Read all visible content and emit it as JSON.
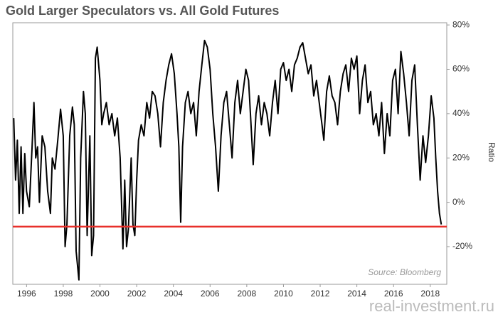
{
  "chart_data": {
    "type": "line",
    "title": "Gold Larger Speculators vs. All Gold Futures",
    "y_label": "Ratio",
    "source": "Source: Bloomberg",
    "watermark": "real-investment.ru",
    "color": "#000000",
    "hline": -11,
    "hline_color": "#e8302b",
    "xlim": [
      1995.25,
      2018.9
    ],
    "xticks": [
      1996,
      1998,
      2000,
      2002,
      2004,
      2006,
      2008,
      2010,
      2012,
      2014,
      2016,
      2018
    ],
    "ylim": [
      -37,
      81
    ],
    "yticks": [
      {
        "value": -20,
        "label": "-20%"
      },
      {
        "value": 0,
        "label": "0%"
      },
      {
        "value": 20,
        "label": "20%"
      },
      {
        "value": 40,
        "label": "40%"
      },
      {
        "value": 60,
        "label": "60%"
      },
      {
        "value": 80,
        "label": "80%"
      }
    ],
    "x": [
      1995.3,
      1995.4,
      1995.5,
      1995.6,
      1995.7,
      1995.8,
      1995.9,
      1996.0,
      1996.15,
      1996.3,
      1996.4,
      1996.5,
      1996.6,
      1996.7,
      1996.85,
      1997.0,
      1997.15,
      1997.3,
      1997.4,
      1997.55,
      1997.7,
      1997.85,
      1998.0,
      1998.1,
      1998.2,
      1998.35,
      1998.5,
      1998.6,
      1998.7,
      1998.85,
      1998.95,
      1999.1,
      1999.2,
      1999.3,
      1999.45,
      1999.55,
      1999.65,
      1999.75,
      1999.85,
      2000.0,
      2000.1,
      2000.2,
      2000.35,
      2000.5,
      2000.65,
      2000.8,
      2000.95,
      2001.1,
      2001.25,
      2001.35,
      2001.45,
      2001.55,
      2001.7,
      2001.8,
      2001.9,
      2002.0,
      2002.1,
      2002.25,
      2002.4,
      2002.55,
      2002.7,
      2002.85,
      2003.0,
      2003.15,
      2003.3,
      2003.45,
      2003.6,
      2003.75,
      2003.9,
      2004.05,
      2004.2,
      2004.3,
      2004.4,
      2004.5,
      2004.65,
      2004.8,
      2004.95,
      2005.1,
      2005.25,
      2005.4,
      2005.55,
      2005.7,
      2005.85,
      2006.0,
      2006.15,
      2006.3,
      2006.45,
      2006.6,
      2006.75,
      2006.9,
      2007.05,
      2007.2,
      2007.35,
      2007.5,
      2007.65,
      2007.8,
      2007.95,
      2008.1,
      2008.2,
      2008.35,
      2008.5,
      2008.65,
      2008.8,
      2008.95,
      2009.1,
      2009.25,
      2009.4,
      2009.55,
      2009.7,
      2009.85,
      2010.0,
      2010.15,
      2010.3,
      2010.45,
      2010.6,
      2010.75,
      2010.9,
      2011.05,
      2011.2,
      2011.35,
      2011.5,
      2011.65,
      2011.8,
      2011.95,
      2012.1,
      2012.2,
      2012.35,
      2012.5,
      2012.65,
      2012.8,
      2012.95,
      2013.1,
      2013.25,
      2013.4,
      2013.55,
      2013.7,
      2013.85,
      2014.0,
      2014.15,
      2014.3,
      2014.45,
      2014.6,
      2014.75,
      2014.9,
      2015.05,
      2015.2,
      2015.35,
      2015.5,
      2015.65,
      2015.8,
      2015.95,
      2016.1,
      2016.25,
      2016.4,
      2016.55,
      2016.7,
      2016.85,
      2017.0,
      2017.15,
      2017.3,
      2017.45,
      2017.6,
      2017.75,
      2017.9,
      2018.05,
      2018.2,
      2018.3,
      2018.4,
      2018.5,
      2018.6
    ],
    "values": [
      38,
      10,
      28,
      -5,
      25,
      -5,
      22,
      5,
      -2,
      25,
      45,
      20,
      25,
      0,
      30,
      25,
      5,
      -5,
      20,
      15,
      28,
      42,
      30,
      -20,
      -10,
      30,
      43,
      35,
      -22,
      -35,
      20,
      50,
      40,
      -15,
      30,
      -24,
      -15,
      65,
      70,
      55,
      35,
      40,
      45,
      35,
      40,
      30,
      38,
      20,
      -21,
      10,
      -20,
      -12,
      20,
      -10,
      -15,
      10,
      28,
      35,
      30,
      45,
      38,
      50,
      48,
      40,
      25,
      45,
      55,
      62,
      67,
      58,
      40,
      25,
      -9,
      25,
      45,
      50,
      40,
      45,
      30,
      50,
      62,
      73,
      70,
      60,
      40,
      25,
      5,
      30,
      45,
      50,
      35,
      20,
      45,
      55,
      40,
      50,
      60,
      55,
      40,
      17,
      40,
      48,
      35,
      45,
      40,
      30,
      45,
      55,
      40,
      60,
      63,
      55,
      60,
      50,
      62,
      65,
      70,
      72,
      65,
      58,
      62,
      48,
      55,
      45,
      35,
      28,
      50,
      57,
      48,
      45,
      35,
      50,
      58,
      62,
      50,
      65,
      60,
      66,
      40,
      55,
      62,
      45,
      50,
      35,
      40,
      30,
      45,
      22,
      40,
      30,
      55,
      60,
      40,
      68,
      58,
      45,
      30,
      55,
      62,
      35,
      10,
      30,
      18,
      30,
      48,
      38,
      20,
      5,
      -5,
      -10
    ]
  }
}
